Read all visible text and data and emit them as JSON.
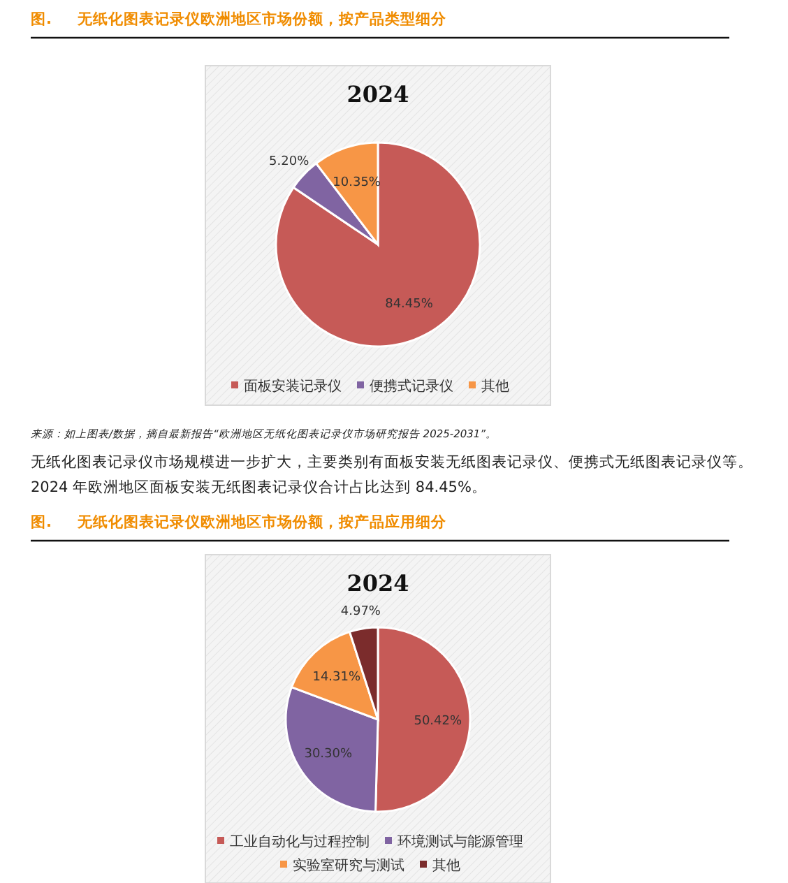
{
  "chart_data": [
    {
      "type": "pie",
      "title": "2024",
      "subtitle": "图.     无纸化图表记录仪欧洲地区市场份额，按产品类型细分",
      "categories": [
        "面板安装记录仪",
        "便携式记录仪",
        "其他"
      ],
      "values": [
        84.45,
        5.2,
        10.35
      ],
      "colors": [
        "#c65a57",
        "#8064a2",
        "#f79646"
      ],
      "value_labels": [
        "84.45%",
        "5.20%",
        "10.35%"
      ],
      "legend": "bottom",
      "annotations": [
        "来源：如上图表/数据，摘自最新报告“欧洲地区无纸化图表记录仪市场研究报告 2025-2031”。",
        "无纸化图表记录仪市场规模进一步扩大，主要类别有面板安装无纸图表记录仪、便携式无纸图表记录仪等。",
        "2024 年欧洲地区面板安装无纸图表记录仪合计占比达到 84.45%。"
      ]
    },
    {
      "type": "pie",
      "title": "2024",
      "subtitle": "图.     无纸化图表记录仪欧洲地区市场份额，按产品应用细分",
      "categories": [
        "工业自动化与过程控制",
        "环境测试与能源管理",
        "实验室研究与测试",
        "其他"
      ],
      "values": [
        50.42,
        30.3,
        14.31,
        4.97
      ],
      "colors": [
        "#c65a57",
        "#8064a2",
        "#f79646",
        "#7b2c2c"
      ],
      "value_labels": [
        "50.42%",
        "30.30%",
        "14.31%",
        "4.97%"
      ],
      "legend": "bottom"
    }
  ]
}
